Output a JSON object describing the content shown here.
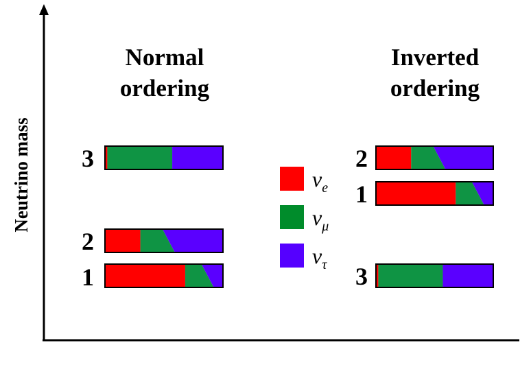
{
  "axis": {
    "ylabel": "Neutrino mass"
  },
  "orderings": [
    {
      "title_line1": "Normal",
      "title_line2": "ordering",
      "levels": [
        {
          "label": "3",
          "segments": [
            0.02,
            0.55,
            0.43
          ]
        },
        {
          "label": "2",
          "segments": [
            0.3,
            0.24,
            0.46
          ]
        },
        {
          "label": "1",
          "segments": [
            0.68,
            0.19,
            0.13
          ]
        }
      ]
    },
    {
      "title_line1": "Inverted",
      "title_line2": "ordering",
      "levels": [
        {
          "label": "2",
          "segments": [
            0.3,
            0.24,
            0.46
          ]
        },
        {
          "label": "1",
          "segments": [
            0.68,
            0.19,
            0.13
          ]
        },
        {
          "label": "3",
          "segments": [
            0.02,
            0.55,
            0.43
          ]
        }
      ]
    }
  ],
  "legend": [
    {
      "symbol": "ν",
      "sub": "e",
      "color": "#ff0000"
    },
    {
      "symbol": "ν",
      "sub": "μ",
      "color": "#008c2b"
    },
    {
      "symbol": "ν",
      "sub": "τ",
      "color": "#5500ff"
    }
  ],
  "flavor_colors": {
    "e": "#ff0000",
    "mu": "#0f9444",
    "tau": "#5a00ff"
  }
}
